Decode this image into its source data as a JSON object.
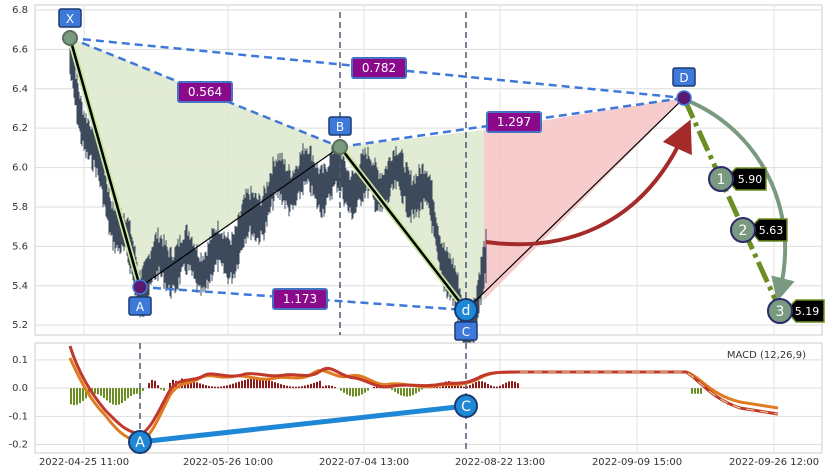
{
  "chart_data": [
    {
      "type": "line",
      "pattern": "harmonic XABCD",
      "ylim": [
        5.15,
        6.8
      ],
      "y_ticks": [
        "5.2",
        "5.4",
        "5.6",
        "5.8",
        "6.0",
        "6.2",
        "6.4",
        "6.6",
        "6.8"
      ],
      "x_tick_labels": [
        "2022-04-25 11:00",
        "2022-05-26 10:00",
        "2022-07-04 13:00",
        "2022-08-22 13:00",
        "2022-09-09 15:00",
        "2022-09-26 12:00"
      ],
      "grid": true,
      "points": [
        {
          "label": "X",
          "time": "2022-04-25 11:00",
          "value": 6.65
        },
        {
          "label": "A",
          "time": "2022-05-04",
          "value": 5.32
        },
        {
          "label": "B",
          "time": "2022-07-01",
          "value": 6.07
        },
        {
          "label": "C",
          "time": "2022-08-22 13:00",
          "value": 5.19
        },
        {
          "label": "d",
          "time": "2022-08-22 13:00",
          "value": 5.19
        },
        {
          "label": "D",
          "time": "2022-09-12",
          "value": 6.33
        }
      ],
      "ratios": [
        {
          "label": "0.564",
          "between": "X-B"
        },
        {
          "label": "0.782",
          "between": "X-D"
        },
        {
          "label": "1.297",
          "between": "B-D"
        },
        {
          "label": "1.173",
          "between": "A-C"
        }
      ],
      "targets": [
        {
          "num": "1",
          "value": 5.9
        },
        {
          "num": "2",
          "value": 5.63
        },
        {
          "num": "3",
          "value": 5.19
        }
      ],
      "target_labels": [
        "5.90",
        "5.63",
        "5.19"
      ],
      "colors": {
        "xab": "#dfe9cf",
        "bcd": "#f6c6c6",
        "dash": "#3e78d8",
        "ratio_box": "#8b0a8b",
        "ratio_border": "#4472c4",
        "leg": "#000000",
        "target_line": "#6b8e23",
        "arc": "#7a9a80",
        "red_arrow": "#a52a2a",
        "price": "#3c4a5c"
      }
    },
    {
      "type": "bar",
      "title": "MACD (12,26,9)",
      "ylim": [
        -0.23,
        0.16
      ],
      "y_ticks": [
        "0.1",
        "0.0",
        "-0.1",
        "-0.2"
      ],
      "points": [
        {
          "label": "A",
          "value": -0.22
        },
        {
          "label": "C",
          "value": -0.08
        }
      ],
      "colors": {
        "macd": "#e07b20",
        "signal": "#c0392b",
        "hist_pos": "#8b1a1a",
        "hist_neg": "#6b8e23",
        "trend": "#1e88d6"
      }
    }
  ]
}
